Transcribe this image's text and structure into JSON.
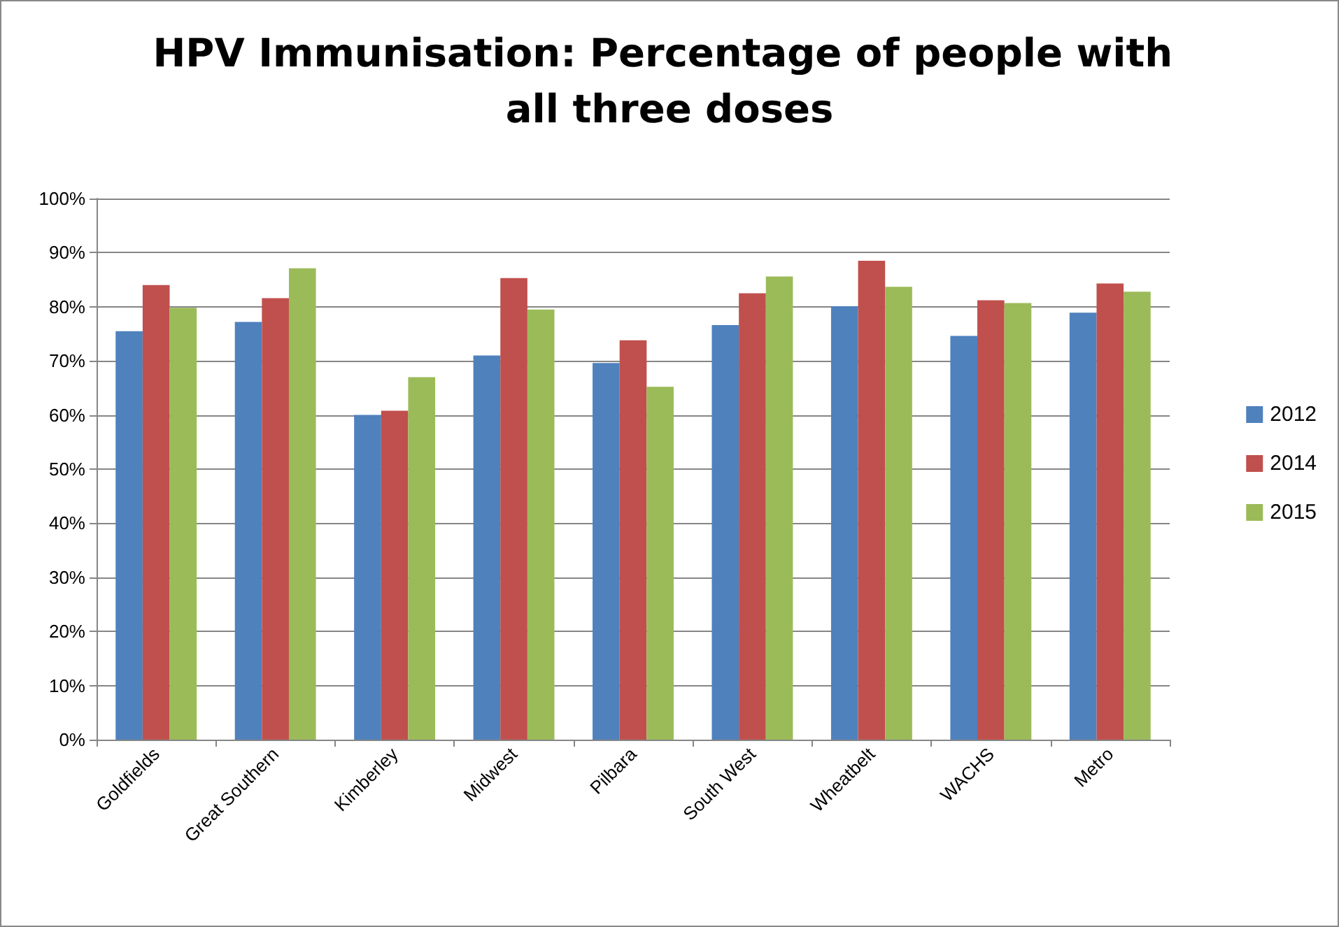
{
  "chart_data": {
    "type": "bar",
    "title": "HPV Immunisation: Percentage of people with all three doses",
    "categories": [
      "Goldfields",
      "Great Southern",
      "Kimberley",
      "Midwest",
      "Pilbara",
      "South West",
      "Wheatbelt",
      "WACHS",
      "Metro"
    ],
    "series": [
      {
        "name": "2012",
        "color": "#4f81bd",
        "values": [
          75.5,
          77.2,
          60,
          71,
          69.6,
          76.6,
          80.1,
          74.6,
          78.9
        ]
      },
      {
        "name": "2014",
        "color": "#c0504d",
        "values": [
          84,
          81.6,
          60.8,
          85.3,
          73.8,
          82.5,
          88.5,
          81.2,
          84.3
        ]
      },
      {
        "name": "2015",
        "color": "#9bbb59",
        "values": [
          79.8,
          87.1,
          67,
          79.5,
          65.2,
          85.6,
          83.7,
          80.7,
          82.8
        ]
      }
    ],
    "ylim": [
      0,
      100
    ],
    "yticks": [
      {
        "value": 0,
        "label": "0%"
      },
      {
        "value": 10,
        "label": "10%"
      },
      {
        "value": 20,
        "label": "20%"
      },
      {
        "value": 30,
        "label": "30%"
      },
      {
        "value": 40,
        "label": "40%"
      },
      {
        "value": 50,
        "label": "50%"
      },
      {
        "value": 60,
        "label": "60%"
      },
      {
        "value": 70,
        "label": "70%"
      },
      {
        "value": 80,
        "label": "80%"
      },
      {
        "value": 90,
        "label": "90%"
      },
      {
        "value": 100,
        "label": "100%"
      }
    ],
    "grid": "y",
    "legend": "right"
  }
}
